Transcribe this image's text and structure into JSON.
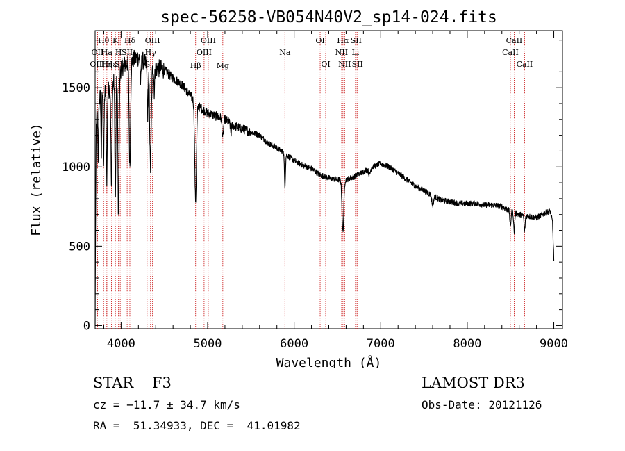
{
  "chart_data": {
    "type": "line",
    "title": "spec-56258-VB054N40V2_sp14-024.fits",
    "xlabel": "Wavelength (Å)",
    "ylabel": "Flux (relative)",
    "xlim": [
      3700,
      9100
    ],
    "ylim": [
      -20,
      1860
    ],
    "xticks": [
      4000,
      5000,
      6000,
      7000,
      8000,
      9000
    ],
    "xtick_labels": [
      "4000",
      "5000",
      "6000",
      "7000",
      "8000",
      "9000"
    ],
    "yticks": [
      0,
      500,
      1000,
      1500
    ],
    "ytick_labels": [
      "0",
      "500",
      "1000",
      "1500"
    ],
    "continuum": [
      [
        3700,
        0
      ],
      [
        3705,
        600
      ],
      [
        3712,
        1250
      ],
      [
        3730,
        1380
      ],
      [
        3760,
        1450
      ],
      [
        3800,
        1470
      ],
      [
        3850,
        1480
      ],
      [
        3900,
        1520
      ],
      [
        3950,
        1580
      ],
      [
        4000,
        1620
      ],
      [
        4050,
        1650
      ],
      [
        4100,
        1660
      ],
      [
        4150,
        1680
      ],
      [
        4200,
        1690
      ],
      [
        4250,
        1670
      ],
      [
        4300,
        1640
      ],
      [
        4350,
        1640
      ],
      [
        4400,
        1620
      ],
      [
        4450,
        1620
      ],
      [
        4500,
        1610
      ],
      [
        4600,
        1560
      ],
      [
        4700,
        1520
      ],
      [
        4800,
        1450
      ],
      [
        4900,
        1380
      ],
      [
        5000,
        1340
      ],
      [
        5100,
        1320
      ],
      [
        5200,
        1300
      ],
      [
        5300,
        1260
      ],
      [
        5400,
        1240
      ],
      [
        5500,
        1220
      ],
      [
        5600,
        1200
      ],
      [
        5700,
        1150
      ],
      [
        5800,
        1120
      ],
      [
        5900,
        1080
      ],
      [
        6000,
        1040
      ],
      [
        6100,
        1010
      ],
      [
        6200,
        990
      ],
      [
        6300,
        950
      ],
      [
        6400,
        930
      ],
      [
        6500,
        920
      ],
      [
        6600,
        920
      ],
      [
        6700,
        940
      ],
      [
        6800,
        970
      ],
      [
        6900,
        1000
      ],
      [
        7000,
        1020
      ],
      [
        7100,
        1000
      ],
      [
        7200,
        960
      ],
      [
        7300,
        920
      ],
      [
        7400,
        880
      ],
      [
        7500,
        850
      ],
      [
        7600,
        820
      ],
      [
        7700,
        790
      ],
      [
        7800,
        780
      ],
      [
        7900,
        770
      ],
      [
        8000,
        770
      ],
      [
        8100,
        770
      ],
      [
        8200,
        760
      ],
      [
        8300,
        760
      ],
      [
        8400,
        750
      ],
      [
        8500,
        720
      ],
      [
        8600,
        700
      ],
      [
        8700,
        690
      ],
      [
        8800,
        680
      ],
      [
        8900,
        710
      ],
      [
        8960,
        720
      ],
      [
        8985,
        650
      ],
      [
        9000,
        420
      ]
    ],
    "absorption_features": [
      {
        "center": 3735,
        "depth": 400,
        "width": 4
      },
      {
        "center": 3771,
        "depth": 400,
        "width": 4
      },
      {
        "center": 3798,
        "depth": 450,
        "width": 5
      },
      {
        "center": 3835,
        "depth": 550,
        "width": 5
      },
      {
        "center": 3889,
        "depth": 650,
        "width": 6
      },
      {
        "center": 3934,
        "depth": 750,
        "width": 6
      },
      {
        "center": 3970,
        "depth": 900,
        "width": 7
      },
      {
        "center": 4101,
        "depth": 650,
        "width": 8
      },
      {
        "center": 4227,
        "depth": 150,
        "width": 5
      },
      {
        "center": 4308,
        "depth": 300,
        "width": 6
      },
      {
        "center": 4340,
        "depth": 650,
        "width": 9
      },
      {
        "center": 4383,
        "depth": 150,
        "width": 5
      },
      {
        "center": 4861,
        "depth": 620,
        "width": 10
      },
      {
        "center": 5175,
        "depth": 120,
        "width": 8
      },
      {
        "center": 5270,
        "depth": 60,
        "width": 6
      },
      {
        "center": 5893,
        "depth": 200,
        "width": 6
      },
      {
        "center": 6563,
        "depth": 330,
        "width": 10
      },
      {
        "center": 6870,
        "depth": 40,
        "width": 10
      },
      {
        "center": 7600,
        "depth": 60,
        "width": 10
      },
      {
        "center": 8498,
        "depth": 100,
        "width": 6
      },
      {
        "center": 8542,
        "depth": 120,
        "width": 6
      },
      {
        "center": 8662,
        "depth": 100,
        "width": 6
      }
    ],
    "noise_amplitude": 18,
    "line_markers": [
      {
        "label": "Hθ",
        "wavelength": 3798,
        "row": 1
      },
      {
        "label": "OII",
        "wavelength": 3727,
        "row": 2
      },
      {
        "label": "OIII",
        "wavelength": 3727,
        "row": 3
      },
      {
        "label": "Ha­",
        "wavelength": 3835,
        "row": 2
      },
      {
        "label": "Hη",
        "wavelength": 3835,
        "row": 3
      },
      {
        "label": "K",
        "wavelength": 3934,
        "row": 1
      },
      {
        "label": "Hε",
        "wavelength": 3889,
        "row": 3
      },
      {
        "label": "H",
        "wavelength": 3970,
        "row": 2
      },
      {
        "label": "SII",
        "wavelength": 4070,
        "row": 2
      },
      {
        "label": "SII",
        "wavelength": 3990,
        "row": 3
      },
      {
        "label": "Hδ",
        "wavelength": 4101,
        "row": 1
      },
      {
        "label": "OIII",
        "wavelength": 4363,
        "row": 1
      },
      {
        "label": "Hγ",
        "wavelength": 4340,
        "row": 2
      },
      {
        "label": "G",
        "wavelength": 4300,
        "row": 3
      },
      {
        "label": "OIII",
        "wavelength": 5007,
        "row": 1
      },
      {
        "label": "OIII",
        "wavelength": 4959,
        "row": 2
      },
      {
        "label": "Hβ",
        "wavelength": 4861,
        "row": 4
      },
      {
        "label": "Mg",
        "wavelength": 5175,
        "row": 4
      },
      {
        "label": "Na",
        "wavelength": 5893,
        "row": 2
      },
      {
        "label": "OI",
        "wavelength": 6300,
        "row": 1
      },
      {
        "label": "OI",
        "wavelength": 6364,
        "row": 3
      },
      {
        "label": "Hα",
        "wavelength": 6563,
        "row": 1
      },
      {
        "label": "NII",
        "wavelength": 6548,
        "row": 2
      },
      {
        "label": "NII",
        "wavelength": 6583,
        "row": 3
      },
      {
        "label": "SII",
        "wavelength": 6716,
        "row": 1
      },
      {
        "label": "Li",
        "wavelength": 6708,
        "row": 2
      },
      {
        "label": "SII",
        "wavelength": 6731,
        "row": 3
      },
      {
        "label": "CaII",
        "wavelength": 8542,
        "row": 1
      },
      {
        "label": "CaII",
        "wavelength": 8498,
        "row": 2
      },
      {
        "label": "CaII",
        "wavelength": 8662,
        "row": 3
      }
    ]
  },
  "info": {
    "star_label": "STAR    F3",
    "survey": "LAMOST DR3",
    "cz": "cz = −11.7 ± 34.7 km/s",
    "obs_date": "Obs-Date: 20121126",
    "radec": "RA =  51.34933, DEC =  41.01982"
  }
}
